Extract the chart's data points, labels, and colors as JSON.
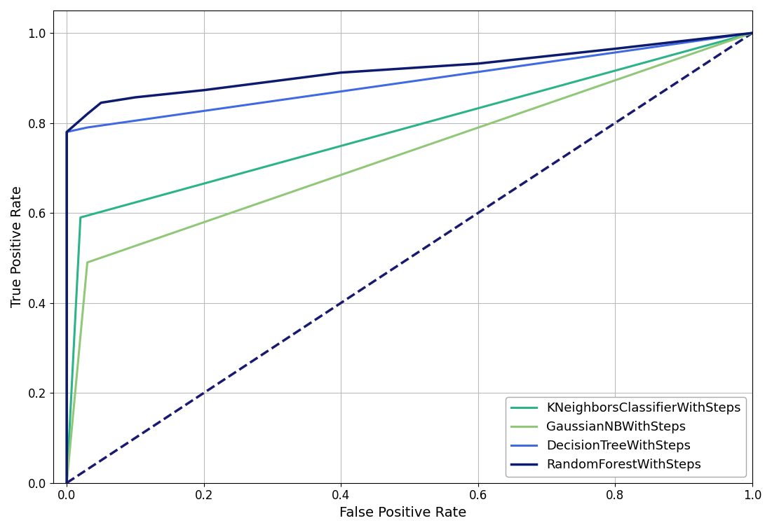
{
  "title": "",
  "xlabel": "False Positive Rate",
  "ylabel": "True Positive Rate",
  "xlim": [
    -0.02,
    1.0
  ],
  "ylim": [
    0.0,
    1.05
  ],
  "grid": true,
  "background_color": "#ffffff",
  "diagonal": {
    "color": "#191970",
    "linestyle": "--",
    "linewidth": 2.5
  },
  "curves": [
    {
      "name": "KNeighborsClassifierWithSteps",
      "color": "#2db388",
      "linewidth": 2.2,
      "x": [
        0.0,
        0.02,
        1.0
      ],
      "y": [
        0.0,
        0.59,
        1.0
      ]
    },
    {
      "name": "GaussianNBWithSteps",
      "color": "#90c878",
      "linewidth": 2.2,
      "x": [
        0.0,
        0.03,
        1.0
      ],
      "y": [
        0.0,
        0.49,
        1.0
      ]
    },
    {
      "name": "DecisionTreeWithSteps",
      "color": "#4169e1",
      "linewidth": 2.2,
      "x": [
        0.0,
        0.0,
        0.03,
        1.0
      ],
      "y": [
        0.0,
        0.78,
        0.79,
        1.0
      ]
    },
    {
      "name": "RandomForestWithSteps",
      "color": "#0d1b6e",
      "linewidth": 2.5,
      "x": [
        0.0,
        0.0,
        0.03,
        0.05,
        0.1,
        0.2,
        0.4,
        0.6,
        0.8,
        1.0
      ],
      "y": [
        0.0,
        0.78,
        0.82,
        0.845,
        0.857,
        0.873,
        0.912,
        0.932,
        0.965,
        1.0
      ]
    }
  ],
  "legend_loc": "lower right",
  "legend_fontsize": 13,
  "axis_fontsize": 14,
  "tick_fontsize": 12,
  "xticks": [
    0.0,
    0.2,
    0.4,
    0.6,
    0.8,
    1.0
  ],
  "yticks": [
    0.0,
    0.2,
    0.4,
    0.6,
    0.8,
    1.0
  ]
}
